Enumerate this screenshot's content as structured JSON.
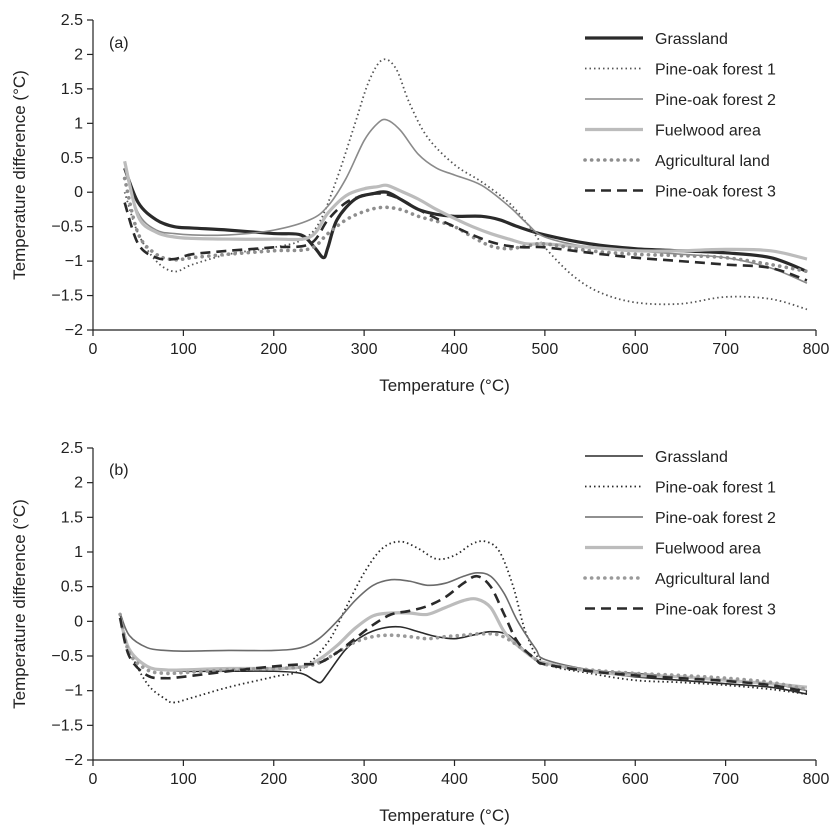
{
  "chart_data": [
    {
      "type": "line",
      "panel_label": "(a)",
      "xlabel": "Temperature (°C)",
      "ylabel": "Temperature difference (°C)",
      "xlim": [
        0,
        800
      ],
      "ylim": [
        -2,
        2.5
      ],
      "xticks": [
        0,
        100,
        200,
        300,
        400,
        500,
        600,
        700,
        800
      ],
      "yticks": [
        -2,
        -1.5,
        -1,
        -0.5,
        0,
        0.5,
        1,
        1.5,
        2,
        2.5
      ],
      "legend_position": "top-right",
      "grid": false,
      "series": [
        {
          "name": "Grassland",
          "color": "#2a2a2a",
          "style": "solid-thick",
          "x": [
            35,
            50,
            70,
            90,
            110,
            150,
            200,
            230,
            245,
            255,
            260,
            270,
            290,
            310,
            325,
            340,
            360,
            380,
            400,
            430,
            450,
            470,
            500,
            550,
            600,
            650,
            700,
            750,
            790
          ],
          "y": [
            0.35,
            -0.15,
            -0.4,
            -0.5,
            -0.52,
            -0.55,
            -0.6,
            -0.62,
            -0.8,
            -0.95,
            -0.8,
            -0.4,
            -0.1,
            -0.02,
            0.0,
            -0.1,
            -0.25,
            -0.32,
            -0.35,
            -0.35,
            -0.4,
            -0.5,
            -0.62,
            -0.75,
            -0.82,
            -0.85,
            -0.88,
            -0.95,
            -1.15
          ]
        },
        {
          "name": "Pine-oak forest 1",
          "color": "#555555",
          "style": "dotted",
          "x": [
            35,
            50,
            70,
            90,
            110,
            150,
            200,
            230,
            250,
            270,
            290,
            305,
            320,
            335,
            350,
            370,
            400,
            430,
            460,
            480,
            500,
            530,
            560,
            600,
            650,
            700,
            750,
            790
          ],
          "y": [
            0.0,
            -0.6,
            -1.0,
            -1.15,
            -1.05,
            -0.9,
            -0.8,
            -0.7,
            -0.45,
            0.2,
            1.0,
            1.6,
            1.92,
            1.8,
            1.3,
            0.8,
            0.4,
            0.15,
            -0.15,
            -0.45,
            -0.8,
            -1.2,
            -1.45,
            -1.6,
            -1.62,
            -1.52,
            -1.55,
            -1.7
          ]
        },
        {
          "name": "Pine-oak forest 2",
          "color": "#8a8a8a",
          "style": "solid-thin",
          "x": [
            35,
            50,
            70,
            90,
            110,
            150,
            200,
            240,
            260,
            280,
            300,
            315,
            325,
            340,
            360,
            380,
            400,
            430,
            460,
            480,
            500,
            550,
            600,
            650,
            700,
            750,
            790
          ],
          "y": [
            0.35,
            -0.3,
            -0.55,
            -0.6,
            -0.62,
            -0.62,
            -0.55,
            -0.4,
            -0.2,
            0.2,
            0.75,
            1.0,
            1.05,
            0.9,
            0.55,
            0.35,
            0.25,
            0.1,
            -0.2,
            -0.45,
            -0.65,
            -0.8,
            -0.85,
            -0.9,
            -0.95,
            -1.1,
            -1.32
          ]
        },
        {
          "name": "Fuelwood area",
          "color": "#bcbcbc",
          "style": "solid-thick",
          "x": [
            35,
            50,
            70,
            90,
            110,
            150,
            200,
            240,
            260,
            280,
            300,
            315,
            325,
            340,
            360,
            380,
            400,
            420,
            440,
            460,
            480,
            500,
            550,
            600,
            650,
            700,
            750,
            790
          ],
          "y": [
            0.45,
            -0.35,
            -0.58,
            -0.65,
            -0.67,
            -0.68,
            -0.68,
            -0.65,
            -0.3,
            -0.05,
            0.05,
            0.08,
            0.1,
            0.02,
            -0.1,
            -0.25,
            -0.38,
            -0.5,
            -0.6,
            -0.68,
            -0.75,
            -0.75,
            -0.8,
            -0.85,
            -0.85,
            -0.83,
            -0.85,
            -0.97
          ]
        },
        {
          "name": "Agricultural land",
          "color": "#8e8e8e",
          "style": "dotted-round",
          "x": [
            35,
            50,
            70,
            90,
            110,
            150,
            200,
            240,
            260,
            280,
            300,
            320,
            340,
            360,
            380,
            400,
            420,
            440,
            460,
            480,
            500,
            550,
            600,
            650,
            700,
            750,
            790
          ],
          "y": [
            0.2,
            -0.6,
            -0.9,
            -0.98,
            -0.95,
            -0.9,
            -0.85,
            -0.82,
            -0.6,
            -0.4,
            -0.28,
            -0.22,
            -0.25,
            -0.35,
            -0.42,
            -0.5,
            -0.65,
            -0.78,
            -0.82,
            -0.78,
            -0.75,
            -0.85,
            -0.9,
            -0.92,
            -0.95,
            -1.05,
            -1.15
          ]
        },
        {
          "name": "Pine-oak forest 3",
          "color": "#2a2a2a",
          "style": "dashed",
          "x": [
            35,
            50,
            70,
            90,
            110,
            150,
            200,
            240,
            260,
            280,
            300,
            320,
            340,
            360,
            380,
            400,
            420,
            440,
            460,
            480,
            500,
            550,
            600,
            650,
            700,
            750,
            790
          ],
          "y": [
            -0.15,
            -0.75,
            -0.95,
            -0.97,
            -0.9,
            -0.85,
            -0.8,
            -0.75,
            -0.4,
            -0.15,
            -0.05,
            -0.02,
            -0.1,
            -0.25,
            -0.38,
            -0.5,
            -0.62,
            -0.72,
            -0.78,
            -0.8,
            -0.8,
            -0.88,
            -0.95,
            -1.0,
            -1.05,
            -1.1,
            -1.28
          ]
        }
      ]
    },
    {
      "type": "line",
      "panel_label": "(b)",
      "xlabel": "Temperature (°C)",
      "ylabel": "Temperature difference (°C)",
      "xlim": [
        0,
        800
      ],
      "ylim": [
        -2,
        2.5
      ],
      "xticks": [
        0,
        100,
        200,
        300,
        400,
        500,
        600,
        700,
        800
      ],
      "yticks": [
        -2,
        -1.5,
        -1,
        -0.5,
        0,
        0.5,
        1,
        1.5,
        2,
        2.5
      ],
      "legend_position": "top-right",
      "grid": false,
      "series": [
        {
          "name": "Grassland",
          "color": "#2a2a2a",
          "style": "solid-thin",
          "x": [
            30,
            40,
            60,
            80,
            100,
            150,
            200,
            230,
            245,
            252,
            260,
            280,
            300,
            320,
            340,
            360,
            380,
            400,
            420,
            440,
            460,
            480,
            500,
            550,
            600,
            650,
            700,
            750,
            790
          ],
          "y": [
            0.1,
            -0.4,
            -0.65,
            -0.7,
            -0.72,
            -0.72,
            -0.72,
            -0.75,
            -0.85,
            -0.88,
            -0.75,
            -0.4,
            -0.2,
            -0.1,
            -0.08,
            -0.15,
            -0.22,
            -0.25,
            -0.2,
            -0.15,
            -0.2,
            -0.45,
            -0.6,
            -0.72,
            -0.8,
            -0.85,
            -0.9,
            -0.95,
            -1.05
          ]
        },
        {
          "name": "Pine-oak forest 1",
          "color": "#2a2a2a",
          "style": "dotted",
          "x": [
            30,
            40,
            60,
            80,
            90,
            110,
            150,
            200,
            230,
            260,
            280,
            300,
            320,
            340,
            360,
            380,
            400,
            420,
            435,
            450,
            465,
            480,
            500,
            550,
            600,
            650,
            700,
            750,
            790
          ],
          "y": [
            0.1,
            -0.4,
            -0.9,
            -1.12,
            -1.17,
            -1.1,
            -0.95,
            -0.8,
            -0.7,
            -0.3,
            0.2,
            0.7,
            1.05,
            1.15,
            1.05,
            0.9,
            0.95,
            1.12,
            1.15,
            1.0,
            0.5,
            -0.2,
            -0.6,
            -0.75,
            -0.85,
            -0.88,
            -0.92,
            -0.98,
            -1.05
          ]
        },
        {
          "name": "Pine-oak forest 2",
          "color": "#6b6b6b",
          "style": "solid-thin",
          "x": [
            30,
            40,
            60,
            80,
            100,
            150,
            200,
            230,
            250,
            270,
            290,
            310,
            330,
            350,
            370,
            390,
            410,
            425,
            440,
            455,
            470,
            490,
            500,
            550,
            600,
            650,
            700,
            750,
            790
          ],
          "y": [
            0.12,
            -0.2,
            -0.38,
            -0.42,
            -0.43,
            -0.42,
            -0.42,
            -0.38,
            -0.25,
            0.0,
            0.3,
            0.52,
            0.6,
            0.58,
            0.52,
            0.55,
            0.65,
            0.7,
            0.65,
            0.4,
            0.0,
            -0.4,
            -0.55,
            -0.7,
            -0.75,
            -0.8,
            -0.85,
            -0.9,
            -1.0
          ]
        },
        {
          "name": "Fuelwood area",
          "color": "#bcbcbc",
          "style": "solid-thick",
          "x": [
            30,
            40,
            60,
            80,
            100,
            150,
            200,
            230,
            250,
            270,
            290,
            310,
            330,
            350,
            370,
            390,
            410,
            425,
            440,
            455,
            470,
            490,
            500,
            550,
            600,
            650,
            700,
            750,
            790
          ],
          "y": [
            0.05,
            -0.4,
            -0.65,
            -0.7,
            -0.7,
            -0.68,
            -0.68,
            -0.66,
            -0.55,
            -0.35,
            -0.1,
            0.08,
            0.12,
            0.12,
            0.1,
            0.2,
            0.3,
            0.32,
            0.2,
            -0.15,
            -0.35,
            -0.55,
            -0.6,
            -0.72,
            -0.78,
            -0.8,
            -0.85,
            -0.9,
            -0.95
          ]
        },
        {
          "name": "Agricultural land",
          "color": "#9a9a9a",
          "style": "dotted-round",
          "x": [
            30,
            40,
            60,
            80,
            100,
            150,
            200,
            230,
            250,
            270,
            290,
            310,
            330,
            350,
            370,
            390,
            410,
            430,
            450,
            470,
            490,
            500,
            550,
            600,
            650,
            700,
            750,
            790
          ],
          "y": [
            0.1,
            -0.45,
            -0.7,
            -0.75,
            -0.74,
            -0.7,
            -0.68,
            -0.66,
            -0.6,
            -0.45,
            -0.3,
            -0.22,
            -0.2,
            -0.22,
            -0.25,
            -0.22,
            -0.2,
            -0.18,
            -0.2,
            -0.35,
            -0.55,
            -0.62,
            -0.7,
            -0.75,
            -0.78,
            -0.82,
            -0.88,
            -0.98
          ]
        },
        {
          "name": "Pine-oak forest 3",
          "color": "#2a2a2a",
          "style": "dashed",
          "x": [
            30,
            40,
            60,
            80,
            100,
            150,
            200,
            230,
            250,
            270,
            290,
            310,
            330,
            350,
            370,
            390,
            410,
            425,
            440,
            455,
            470,
            490,
            500,
            550,
            600,
            650,
            700,
            750,
            790
          ],
          "y": [
            0.05,
            -0.5,
            -0.78,
            -0.82,
            -0.8,
            -0.72,
            -0.65,
            -0.62,
            -0.6,
            -0.45,
            -0.25,
            -0.05,
            0.1,
            0.15,
            0.22,
            0.35,
            0.55,
            0.65,
            0.5,
            0.1,
            -0.3,
            -0.55,
            -0.62,
            -0.72,
            -0.78,
            -0.82,
            -0.86,
            -0.92,
            -1.02
          ]
        }
      ]
    }
  ]
}
